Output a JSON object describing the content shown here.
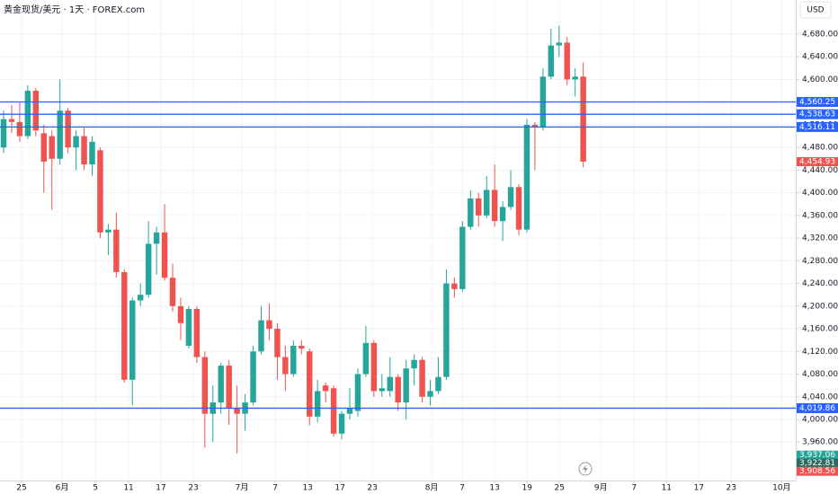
{
  "chart_data": {
    "type": "candlestick",
    "title": "黄金现货/美元 · 1天 · FOREX.com",
    "currency": "USD",
    "up_color": "#26a69a",
    "down_color": "#ef5350",
    "open": [
      4480,
      4530,
      4525,
      4500,
      4580,
      4505,
      4500,
      4460,
      4545,
      4480,
      4500,
      4450,
      4475,
      4330,
      4335,
      4260,
      4070,
      4210,
      4220,
      4310,
      4330,
      4250,
      4200,
      4130,
      4195,
      4110,
      4010,
      4030,
      4095,
      4020,
      4010,
      4030,
      4120,
      4175,
      4160,
      4110,
      4080,
      4130,
      4120,
      4005,
      4060,
      4055,
      3975,
      4010,
      4015,
      4080,
      4135,
      4050,
      4050,
      4075,
      4030,
      4090,
      4105,
      4040,
      4050,
      4075,
      4240,
      4230,
      4340,
      4390,
      4360,
      4405,
      4350,
      4375,
      4410,
      4335,
      4520,
      4515,
      4605,
      4660,
      4665,
      4600,
      4605
    ],
    "high": [
      4545,
      4555,
      4560,
      4590,
      4585,
      4520,
      4510,
      4600,
      4550,
      4510,
      4515,
      4500,
      4480,
      4345,
      4365,
      4265,
      4215,
      4240,
      4350,
      4340,
      4380,
      4275,
      4215,
      4200,
      4200,
      4120,
      4060,
      4100,
      4105,
      4060,
      4045,
      4130,
      4200,
      4205,
      4170,
      4130,
      4140,
      4140,
      4125,
      4070,
      4065,
      4060,
      4015,
      4055,
      4090,
      4165,
      4140,
      4080,
      4110,
      4080,
      4105,
      4115,
      4110,
      4070,
      4110,
      4265,
      4250,
      4350,
      4405,
      4400,
      4430,
      4450,
      4385,
      4440,
      4415,
      4530,
      4525,
      4620,
      4690,
      4695,
      4675,
      4620,
      4630
    ],
    "low": [
      4470,
      4505,
      4490,
      4495,
      4500,
      4400,
      4370,
      4450,
      4470,
      4440,
      4440,
      4430,
      4320,
      4290,
      4250,
      4065,
      4025,
      4200,
      4215,
      4255,
      4245,
      4190,
      4140,
      4125,
      4100,
      3950,
      3960,
      4010,
      3990,
      3940,
      3980,
      4025,
      4115,
      4140,
      4070,
      4050,
      4075,
      4115,
      3990,
      3995,
      4030,
      3970,
      3965,
      4000,
      4005,
      4075,
      4040,
      4040,
      4040,
      4015,
      4000,
      4060,
      4030,
      4025,
      4045,
      4070,
      4215,
      4225,
      4335,
      4340,
      4355,
      4340,
      4315,
      4370,
      4325,
      4330,
      4440,
      4510,
      4600,
      4640,
      4590,
      4570,
      4445
    ],
    "close": [
      4530,
      4525,
      4500,
      4580,
      4510,
      4455,
      4460,
      4545,
      4480,
      4500,
      4450,
      4490,
      4330,
      4335,
      4260,
      4070,
      4210,
      4220,
      4310,
      4330,
      4250,
      4200,
      4170,
      4195,
      4110,
      4010,
      4030,
      4095,
      4020,
      4010,
      4030,
      4120,
      4175,
      4160,
      4110,
      4080,
      4130,
      4125,
      4005,
      4050,
      4050,
      3975,
      4010,
      4020,
      4080,
      4135,
      4050,
      4055,
      4075,
      4030,
      4090,
      4105,
      4040,
      4050,
      4075,
      4240,
      4230,
      4340,
      4390,
      4360,
      4405,
      4350,
      4375,
      4410,
      4335,
      4520,
      4515,
      4605,
      4660,
      4665,
      4600,
      4605,
      4455
    ],
    "xlim": [
      -0.447,
      98.4
    ],
    "xticks": [
      {
        "value": 2.23,
        "label": "25"
      },
      {
        "value": 7.26,
        "label": "6月"
      },
      {
        "value": 11.4,
        "label": "5"
      },
      {
        "value": 15.53,
        "label": "11"
      },
      {
        "value": 19.55,
        "label": "17"
      },
      {
        "value": 23.58,
        "label": "23"
      },
      {
        "value": 29.6,
        "label": "7月"
      },
      {
        "value": 33.74,
        "label": "7"
      },
      {
        "value": 37.77,
        "label": "13"
      },
      {
        "value": 41.79,
        "label": "17"
      },
      {
        "value": 45.81,
        "label": "23"
      },
      {
        "value": 53.18,
        "label": "8月"
      },
      {
        "value": 56.98,
        "label": "7"
      },
      {
        "value": 61.0,
        "label": "13"
      },
      {
        "value": 65.03,
        "label": "19"
      },
      {
        "value": 69.05,
        "label": "25"
      },
      {
        "value": 74.19,
        "label": "9月"
      },
      {
        "value": 78.32,
        "label": "7"
      },
      {
        "value": 82.35,
        "label": "11"
      },
      {
        "value": 86.37,
        "label": "17"
      },
      {
        "value": 90.39,
        "label": "23"
      },
      {
        "value": 96.65,
        "label": "10月"
      }
    ],
    "ylim": [
      3892.2,
      4740.2
    ],
    "yticks": [
      {
        "value": 3960,
        "label": "3,960.00"
      },
      {
        "value": 4000,
        "label": "4,000.00"
      },
      {
        "value": 4040,
        "label": "4,040.00"
      },
      {
        "value": 4080,
        "label": "4,080.00"
      },
      {
        "value": 4120,
        "label": "4,120.00"
      },
      {
        "value": 4160,
        "label": "4,160.00"
      },
      {
        "value": 4200,
        "label": "4,200.00"
      },
      {
        "value": 4240,
        "label": "4,240.00"
      },
      {
        "value": 4280,
        "label": "4,280.00"
      },
      {
        "value": 4320,
        "label": "4,320.00"
      },
      {
        "value": 4360,
        "label": "4,360.00"
      },
      {
        "value": 4400,
        "label": "4,400.00"
      },
      {
        "value": 4440,
        "label": "4,440.00"
      },
      {
        "value": 4480,
        "label": "4,480.00"
      },
      {
        "value": 4520,
        "label": "4,520.00"
      },
      {
        "value": 4560,
        "label": "4,560.00"
      },
      {
        "value": 4600,
        "label": "4,600.00"
      },
      {
        "value": 4640,
        "label": "4,640.00"
      },
      {
        "value": 4680,
        "label": "4,680.00"
      }
    ],
    "grid": true,
    "level_color": "#2962ff",
    "levels": [
      {
        "value": 4560.25,
        "label": "4,560.25"
      },
      {
        "value": 4538.63,
        "label": "4,538.63"
      },
      {
        "value": 4516.11,
        "label": "4,516.11"
      },
      {
        "value": 4019.86,
        "label": "4,019.86"
      }
    ],
    "price_labels": [
      {
        "value": 4454.93,
        "label": "4,454.93",
        "color": "#ef5350"
      },
      {
        "value": 3937.06,
        "label": "3,937.06",
        "color": "#26a69a"
      },
      {
        "value": 3922.81,
        "label": "3,922.81",
        "color": "#2a6b5f"
      },
      {
        "value": 3908.56,
        "label": "3,908.56",
        "color": "#ef5350"
      }
    ]
  }
}
